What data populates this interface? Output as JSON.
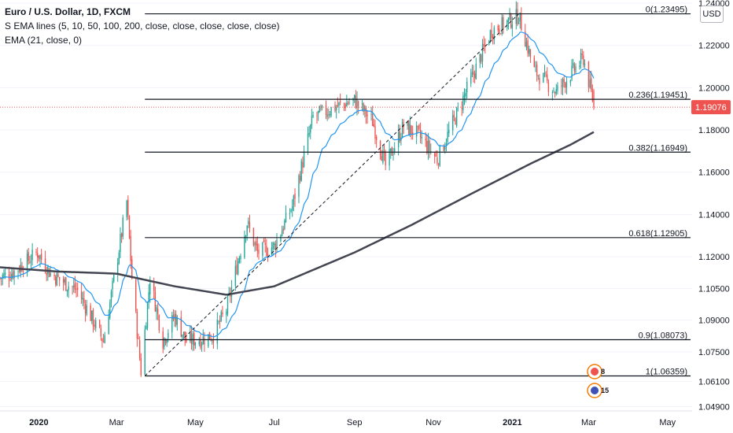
{
  "legend": {
    "title": "Euro / U.S. Dollar, 1D, FXCM",
    "line2": "S EMA lines (5, 10, 50, 100, 200, close, close, close, close, close)",
    "line3": "EMA (21, close, 0)"
  },
  "currency": "USD",
  "colors": {
    "up": "#26a69a",
    "down": "#ef5350",
    "ema21": "#2196f3",
    "ema200": "#434651",
    "fib": "#131722",
    "last": "#ef5350",
    "grid": "#f0f3fa"
  },
  "chart_data": {
    "type": "candlestick",
    "symbol": "EURUSD",
    "ylim": [
      1.047,
      1.2415
    ],
    "y_ticks": [
      "1.24000",
      "1.22000",
      "1.20000",
      "1.18000",
      "1.16000",
      "1.14000",
      "1.12000",
      "1.10500",
      "1.09000",
      "1.07500",
      "1.06100",
      "1.04900"
    ],
    "x_ticks": [
      "2020",
      "Mar",
      "May",
      "Jul",
      "Sep",
      "Nov",
      "2021",
      "Mar",
      "May"
    ],
    "last_price": "1.19076",
    "fib_levels": [
      {
        "label": "0(1.23495)",
        "value": 1.23495
      },
      {
        "label": "0.236(1.19451)",
        "value": 1.19451
      },
      {
        "label": "0.382(1.16949)",
        "value": 1.16949
      },
      {
        "label": "0.618(1.12905)",
        "value": 1.12905
      },
      {
        "label": "0.9(1.08073)",
        "value": 1.08073
      },
      {
        "label": "1(1.06359)",
        "value": 1.06359
      }
    ],
    "fib_anchor": {
      "from_date": "2020-03-23",
      "from": 1.06359,
      "to_date": "2021-01-06",
      "to": 1.23495
    },
    "price_path": [
      [
        "2019-12-02",
        1.11
      ],
      [
        "2019-12-13",
        1.113
      ],
      [
        "2019-12-31",
        1.122
      ],
      [
        "2020-01-10",
        1.112
      ],
      [
        "2020-01-20",
        1.108
      ],
      [
        "2020-01-31",
        1.104
      ],
      [
        "2020-02-10",
        1.092
      ],
      [
        "2020-02-20",
        1.08
      ],
      [
        "2020-03-02",
        1.12
      ],
      [
        "2020-03-09",
        1.146
      ],
      [
        "2020-03-13",
        1.11
      ],
      [
        "2020-03-20",
        1.066
      ],
      [
        "2020-03-27",
        1.11
      ],
      [
        "2020-04-06",
        1.08
      ],
      [
        "2020-04-15",
        1.092
      ],
      [
        "2020-04-24",
        1.08
      ],
      [
        "2020-05-06",
        1.081
      ],
      [
        "2020-05-15",
        1.083
      ],
      [
        "2020-05-25",
        1.095
      ],
      [
        "2020-06-10",
        1.136
      ],
      [
        "2020-06-18",
        1.122
      ],
      [
        "2020-07-01",
        1.125
      ],
      [
        "2020-07-15",
        1.144
      ],
      [
        "2020-07-31",
        1.186
      ],
      [
        "2020-08-18",
        1.191
      ],
      [
        "2020-09-01",
        1.194
      ],
      [
        "2020-09-15",
        1.184
      ],
      [
        "2020-09-25",
        1.163
      ],
      [
        "2020-10-09",
        1.182
      ],
      [
        "2020-10-20",
        1.178
      ],
      [
        "2020-11-04",
        1.166
      ],
      [
        "2020-11-18",
        1.186
      ],
      [
        "2020-12-01",
        1.205
      ],
      [
        "2020-12-16",
        1.227
      ],
      [
        "2021-01-06",
        1.234
      ],
      [
        "2021-01-18",
        1.208
      ],
      [
        "2021-02-04",
        1.198
      ],
      [
        "2021-02-25",
        1.214
      ],
      [
        "2021-03-05",
        1.192
      ]
    ],
    "ema200": [
      [
        "2019-12-02",
        1.115
      ],
      [
        "2020-01-15",
        1.113
      ],
      [
        "2020-03-01",
        1.112
      ],
      [
        "2020-04-15",
        1.106
      ],
      [
        "2020-05-25",
        1.102
      ],
      [
        "2020-07-01",
        1.106
      ],
      [
        "2020-09-01",
        1.122
      ],
      [
        "2020-10-15",
        1.135
      ],
      [
        "2020-12-01",
        1.15
      ],
      [
        "2021-01-15",
        1.164
      ],
      [
        "2021-02-15",
        1.173
      ],
      [
        "2021-03-05",
        1.179
      ]
    ]
  },
  "event_badges": [
    {
      "label": "8"
    },
    {
      "label": "15"
    }
  ]
}
